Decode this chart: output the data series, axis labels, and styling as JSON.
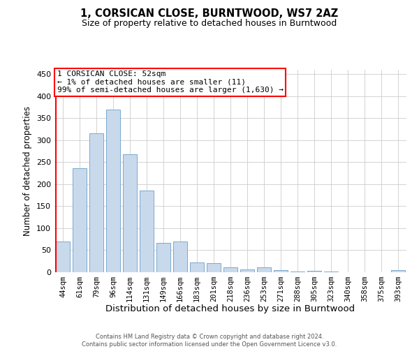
{
  "title": "1, CORSICAN CLOSE, BURNTWOOD, WS7 2AZ",
  "subtitle": "Size of property relative to detached houses in Burntwood",
  "xlabel": "Distribution of detached houses by size in Burntwood",
  "ylabel": "Number of detached properties",
  "footer": "Contains HM Land Registry data © Crown copyright and database right 2024.\nContains public sector information licensed under the Open Government Licence v3.0.",
  "categories": [
    "44sqm",
    "61sqm",
    "79sqm",
    "96sqm",
    "114sqm",
    "131sqm",
    "149sqm",
    "166sqm",
    "183sqm",
    "201sqm",
    "218sqm",
    "236sqm",
    "253sqm",
    "271sqm",
    "288sqm",
    "305sqm",
    "323sqm",
    "340sqm",
    "358sqm",
    "375sqm",
    "393sqm"
  ],
  "values": [
    70,
    237,
    315,
    370,
    268,
    185,
    66,
    70,
    22,
    20,
    11,
    6,
    11,
    5,
    2,
    3,
    1,
    0,
    0,
    0,
    4
  ],
  "bar_color": "#c9d9ec",
  "bar_edge_color": "#7aa8cc",
  "red_line_index": 0,
  "annotation_text": "1 CORSICAN CLOSE: 52sqm\n← 1% of detached houses are smaller (11)\n99% of semi-detached houses are larger (1,630) →",
  "ylim": [
    0,
    460
  ],
  "yticks": [
    0,
    50,
    100,
    150,
    200,
    250,
    300,
    350,
    400,
    450
  ],
  "background_color": "#ffffff",
  "grid_color": "#cccccc"
}
